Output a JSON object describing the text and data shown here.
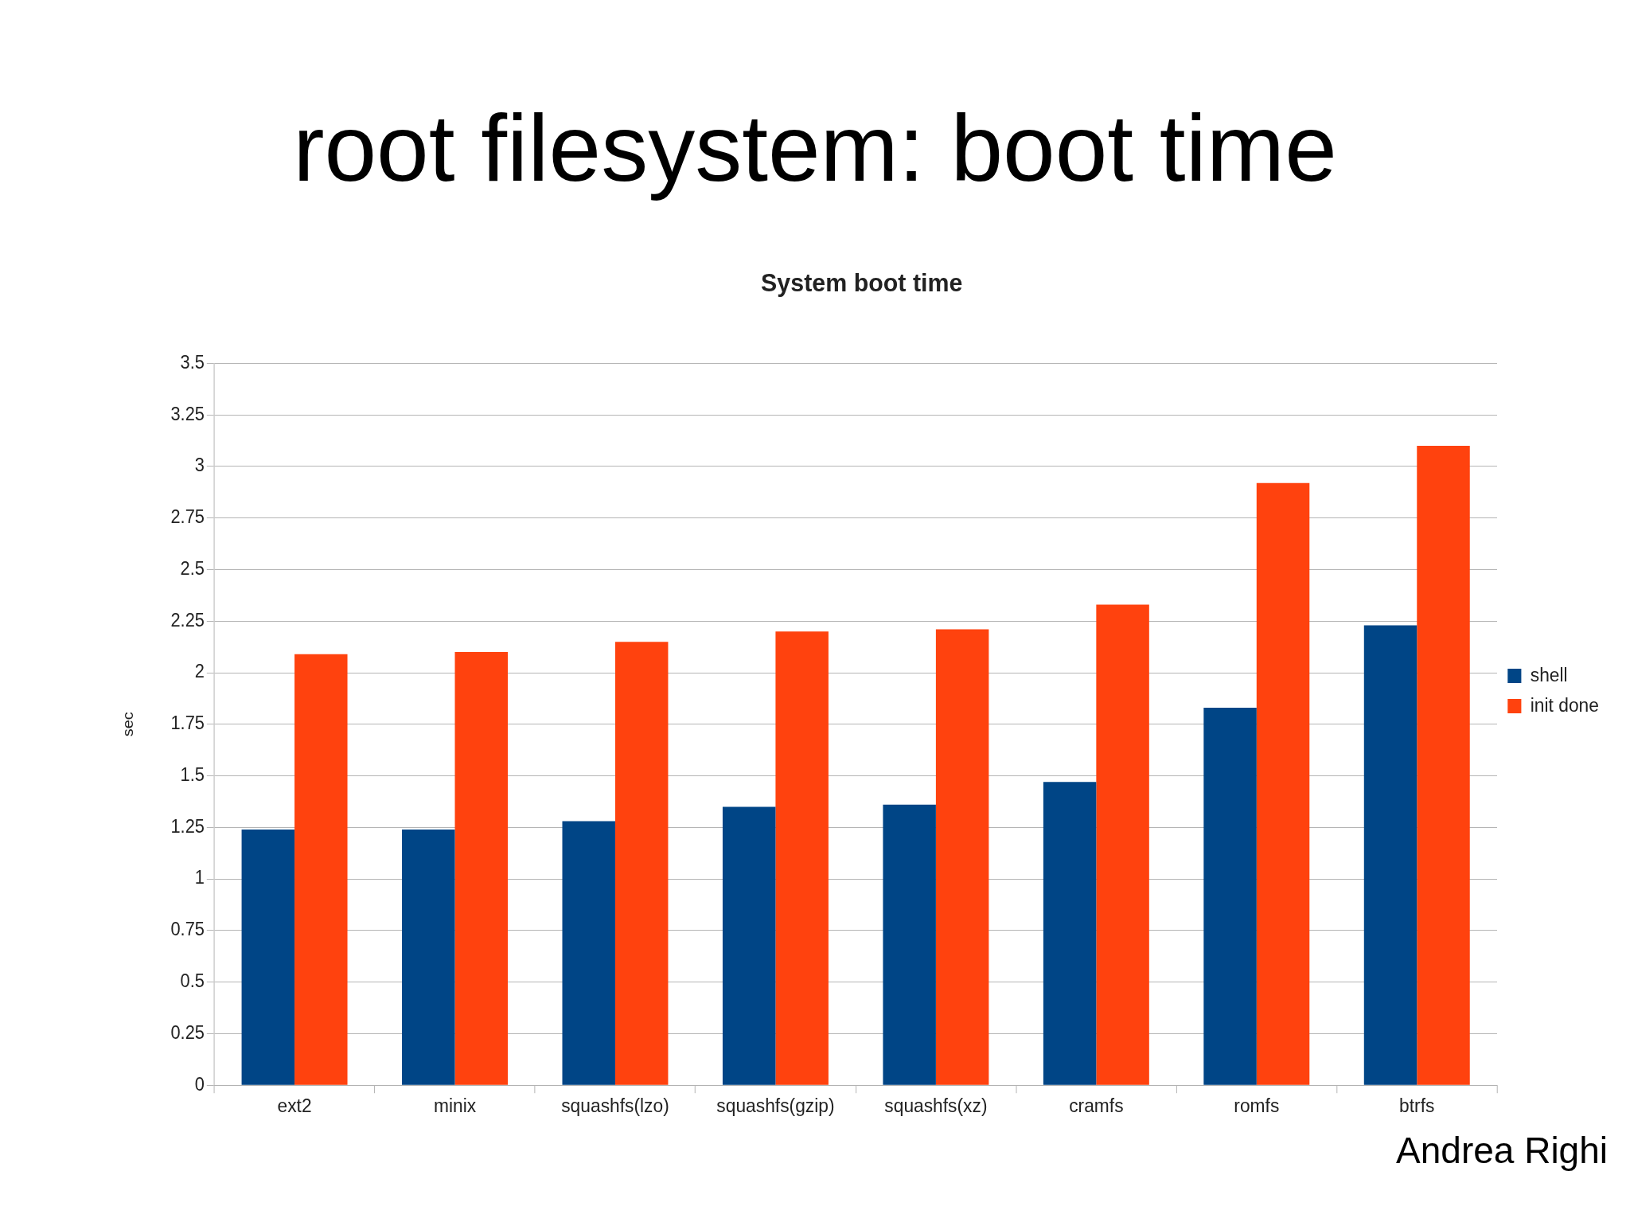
{
  "chart_data": {
    "type": "bar",
    "title": "root filesystem: boot time",
    "subtitle": "System boot time",
    "ylabel": "sec",
    "categories": [
      "ext2",
      "minix",
      "squashfs(lzo)",
      "squashfs(gzip)",
      "squashfs(xz)",
      "cramfs",
      "romfs",
      "btrfs"
    ],
    "series": [
      {
        "name": "shell",
        "color": "#004586",
        "values": [
          1.24,
          1.24,
          1.28,
          1.35,
          1.36,
          1.47,
          1.83,
          2.23
        ]
      },
      {
        "name": "init done",
        "color": "#ff420e",
        "values": [
          2.09,
          2.1,
          2.15,
          2.2,
          2.21,
          2.33,
          2.92,
          3.1
        ]
      }
    ],
    "ylim": [
      0,
      3.5
    ],
    "yticks": [
      0,
      0.25,
      0.5,
      0.75,
      1,
      1.25,
      1.5,
      1.75,
      2,
      2.25,
      2.5,
      2.75,
      3,
      3.25,
      3.5
    ],
    "grid": "y",
    "legend": "right",
    "annotations": [
      "Andrea Righi"
    ]
  }
}
